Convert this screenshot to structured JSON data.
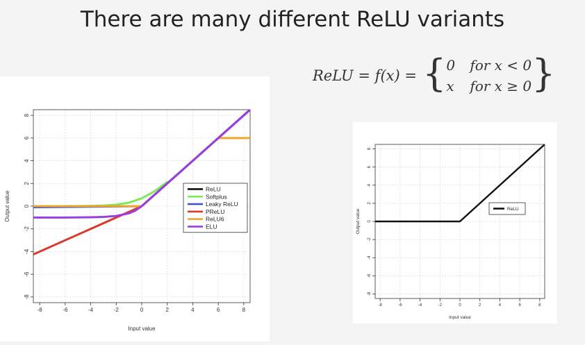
{
  "slide": {
    "title": "There are many different ReLU variants"
  },
  "formula": {
    "lhs": "ReLU = f(x) =",
    "cases": [
      {
        "value": "0",
        "condition": "for x < 0"
      },
      {
        "value": "x",
        "condition": "for x ≥ 0"
      }
    ]
  },
  "chart_data": [
    {
      "type": "line",
      "title": "",
      "xlabel": "Input value",
      "ylabel": "Output value",
      "xlim": [
        -8.5,
        8.5
      ],
      "ylim": [
        -8.5,
        8.5
      ],
      "xticks": [
        "-8",
        "-6",
        "-4",
        "-2",
        "0",
        "2",
        "4",
        "6",
        "8"
      ],
      "yticks": [
        "-8",
        "-6",
        "-4",
        "-2",
        "0",
        "2",
        "4",
        "6",
        "8"
      ],
      "grid": true,
      "legend_position": "right",
      "series": [
        {
          "name": "ReLU",
          "color": "#111111",
          "x": [
            -8.5,
            0,
            8.5
          ],
          "y": [
            0,
            0,
            8.5
          ]
        },
        {
          "name": "Softplus",
          "color": "#7ee85a",
          "x": [
            -8.5,
            -6,
            -4,
            -3,
            -2,
            -1,
            0,
            1,
            2
          ],
          "y": [
            0.0,
            0.0,
            0.02,
            0.05,
            0.13,
            0.31,
            0.69,
            1.31,
            2.13
          ]
        },
        {
          "name": "Leaky ReLU",
          "color": "#3a4fd6",
          "x": [
            -8.5,
            0,
            8.5
          ],
          "y": [
            -0.09,
            0,
            8.5
          ]
        },
        {
          "name": "PReLU",
          "color": "#d93a2b",
          "x": [
            -8.5,
            0
          ],
          "y": [
            -4.25,
            0
          ]
        },
        {
          "name": "ReLU6",
          "color": "#e8a92c",
          "x": [
            -8.5,
            0,
            6,
            8.5
          ],
          "y": [
            0,
            0,
            6,
            6
          ]
        },
        {
          "name": "ELU",
          "color": "#9a3ee0",
          "x": [
            -8.5,
            -6,
            -4,
            -3,
            -2,
            -1,
            -0.5,
            0,
            8.5
          ],
          "y": [
            -1.0,
            -1.0,
            -0.98,
            -0.95,
            -0.86,
            -0.63,
            -0.39,
            0,
            8.5
          ]
        }
      ]
    },
    {
      "type": "line",
      "title": "",
      "xlabel": "Input value",
      "ylabel": "Output value",
      "xlim": [
        -8.5,
        8.5
      ],
      "ylim": [
        -8.5,
        8.5
      ],
      "xticks": [
        "-8",
        "-6",
        "-4",
        "-2",
        "0",
        "2",
        "4",
        "6",
        "8"
      ],
      "yticks": [
        "-8",
        "-6",
        "-4",
        "-2",
        "0",
        "2",
        "4",
        "6",
        "8"
      ],
      "grid": true,
      "legend_position": "right",
      "series": [
        {
          "name": "ReLU",
          "color": "#111111",
          "x": [
            -8.5,
            0,
            8.5
          ],
          "y": [
            0,
            0,
            8.5
          ]
        }
      ]
    }
  ]
}
